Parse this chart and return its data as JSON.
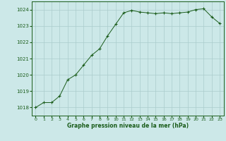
{
  "x": [
    0,
    1,
    2,
    3,
    4,
    5,
    6,
    7,
    8,
    9,
    10,
    11,
    12,
    13,
    14,
    15,
    16,
    17,
    18,
    19,
    20,
    21,
    22,
    23
  ],
  "y": [
    1018.0,
    1018.3,
    1018.3,
    1018.7,
    1019.7,
    1020.0,
    1020.6,
    1021.2,
    1021.6,
    1022.4,
    1023.1,
    1023.8,
    1023.95,
    1023.85,
    1023.8,
    1023.75,
    1023.8,
    1023.75,
    1023.8,
    1023.85,
    1024.0,
    1024.05,
    1023.55,
    1023.15
  ],
  "line_color": "#1a5c1a",
  "marker": "+",
  "bg_color": "#cce8e8",
  "grid_color": "#aacccc",
  "xlabel": "Graphe pression niveau de la mer (hPa)",
  "xlabel_color": "#1a5c1a",
  "tick_color": "#1a5c1a",
  "ylim": [
    1017.5,
    1024.5
  ],
  "yticks": [
    1018,
    1019,
    1020,
    1021,
    1022,
    1023,
    1024
  ],
  "xticks": [
    0,
    1,
    2,
    3,
    4,
    5,
    6,
    7,
    8,
    9,
    10,
    11,
    12,
    13,
    14,
    15,
    16,
    17,
    18,
    19,
    20,
    21,
    22,
    23
  ],
  "xlim": [
    -0.5,
    23.5
  ]
}
